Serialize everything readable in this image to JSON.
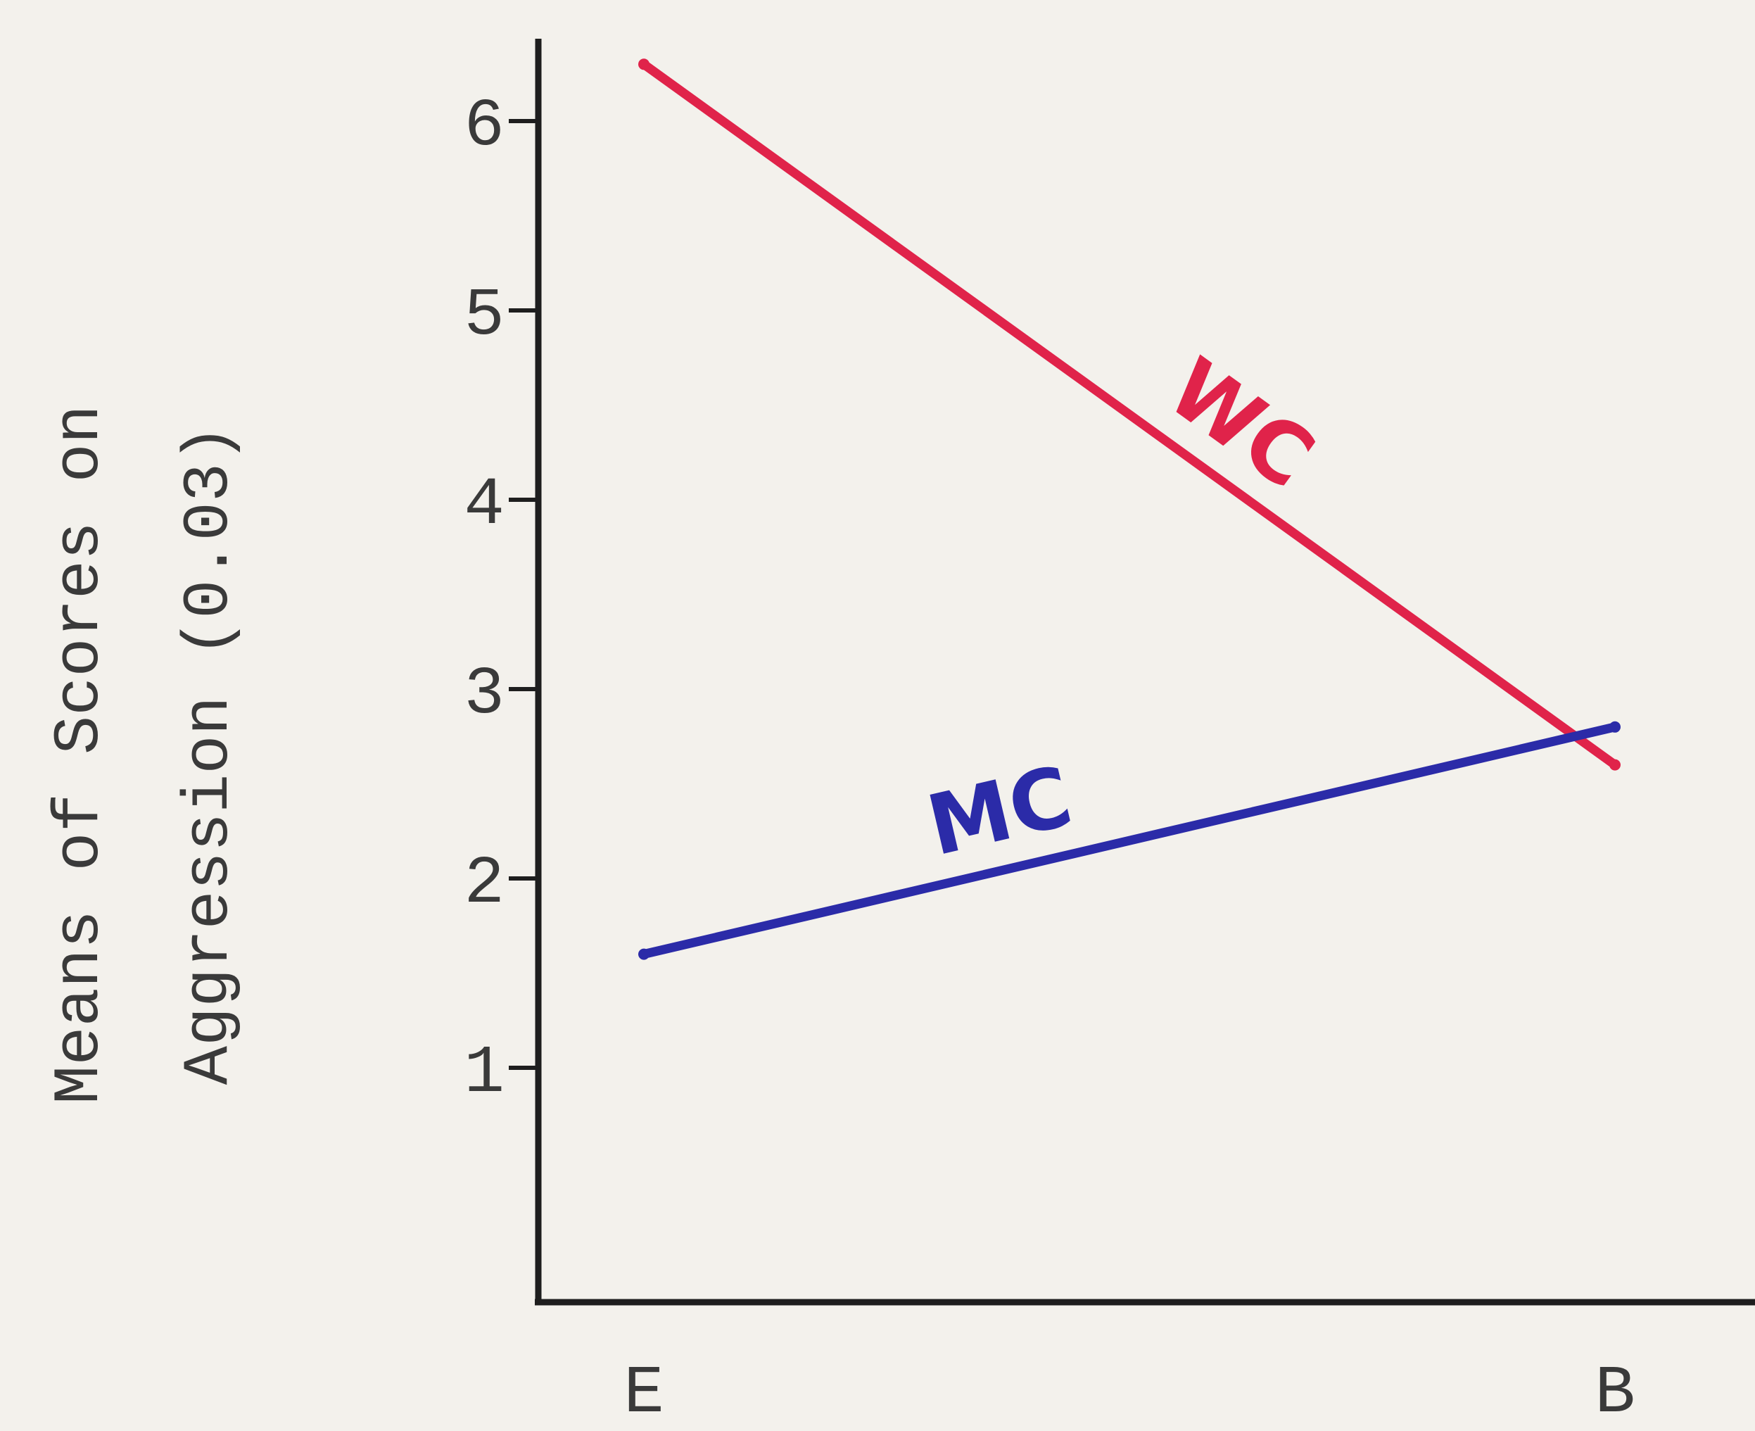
{
  "chart_data": {
    "type": "line",
    "categories": [
      "E",
      "B"
    ],
    "series": [
      {
        "name": "WC",
        "values": [
          6.3,
          2.6
        ],
        "color": "#e0234a"
      },
      {
        "name": "MC",
        "values": [
          1.6,
          2.8
        ],
        "color": "#2b2ba8"
      }
    ],
    "ylabel_line1": "Means of Scores on",
    "ylabel_line2": "Aggression (0.03)",
    "yticks": [
      1,
      2,
      3,
      4,
      5,
      6
    ],
    "ylim": [
      -0.6,
      6.7
    ],
    "grid": false,
    "legend": "none (series labeled inline)"
  }
}
